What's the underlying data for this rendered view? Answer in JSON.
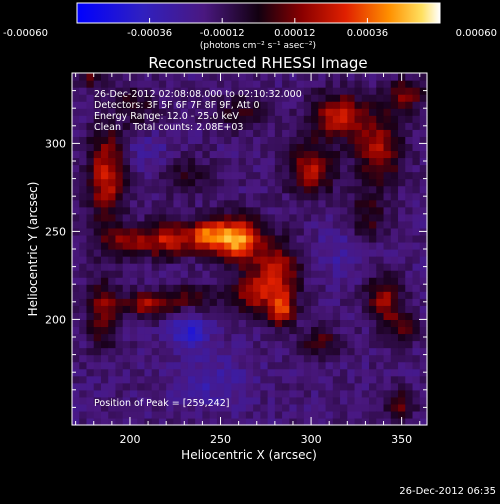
{
  "chart_data": {
    "type": "heatmap",
    "title": "Reconstructed RHESSI Image",
    "xlabel": "Heliocentric X (arcsec)",
    "ylabel": "Heliocentric Y (arcsec)",
    "xlim": [
      168,
      364
    ],
    "ylim": [
      140,
      340
    ],
    "x_ticks": [
      200,
      250,
      300,
      350
    ],
    "y_ticks": [
      200,
      250,
      300
    ],
    "colorbar": {
      "range": [
        -0.0006,
        0.0006
      ],
      "tick_values": [
        -0.0006,
        -0.00036,
        -0.00012,
        0.00012,
        0.00036,
        0.0006
      ],
      "tick_labels": [
        "-0.00060",
        "-0.00036",
        "-0.00012",
        "0.00012",
        "0.00036",
        "0.00060"
      ],
      "unit": "(photons cm⁻² s⁻¹ asec⁻²)"
    },
    "annotations": [
      "26-Dec-2012 02:08:08.000 to 02:10:32.000",
      "Detectors: 3F 5F 6F 7F 8F 9F, Att 0",
      "Energy Range: 12.0 - 25.0 keV",
      "Clean    Total counts: 2.08E+03"
    ],
    "peak_label": "Position of Peak = [259,242]",
    "peak": {
      "x": 259,
      "y": 242
    },
    "sources": [
      {
        "x": 259,
        "y": 246,
        "peak": 0.0006,
        "sx": 9,
        "sy": 9
      },
      {
        "x": 243,
        "y": 248,
        "peak": 0.00042,
        "sx": 7,
        "sy": 6
      },
      {
        "x": 222,
        "y": 246,
        "peak": 0.00038,
        "sx": 10,
        "sy": 7
      },
      {
        "x": 198,
        "y": 244,
        "peak": 0.0003,
        "sx": 10,
        "sy": 6
      },
      {
        "x": 281,
        "y": 228,
        "peak": 0.00036,
        "sx": 9,
        "sy": 12
      },
      {
        "x": 284,
        "y": 206,
        "peak": 0.00042,
        "sx": 5,
        "sy": 7
      },
      {
        "x": 268,
        "y": 214,
        "peak": 0.0003,
        "sx": 8,
        "sy": 8
      },
      {
        "x": 210,
        "y": 209,
        "peak": 0.00034,
        "sx": 10,
        "sy": 5
      },
      {
        "x": 236,
        "y": 213,
        "peak": 0.00022,
        "sx": 9,
        "sy": 5
      },
      {
        "x": 187,
        "y": 282,
        "peak": 0.0004,
        "sx": 7,
        "sy": 18
      },
      {
        "x": 201,
        "y": 320,
        "peak": 0.00028,
        "sx": 8,
        "sy": 7
      },
      {
        "x": 185,
        "y": 205,
        "peak": 0.00028,
        "sx": 6,
        "sy": 14
      },
      {
        "x": 315,
        "y": 316,
        "peak": 0.0004,
        "sx": 10,
        "sy": 9
      },
      {
        "x": 300,
        "y": 286,
        "peak": 0.00036,
        "sx": 9,
        "sy": 10
      },
      {
        "x": 338,
        "y": 298,
        "peak": 0.00034,
        "sx": 9,
        "sy": 14
      },
      {
        "x": 352,
        "y": 328,
        "peak": 0.0003,
        "sx": 7,
        "sy": 6
      },
      {
        "x": 340,
        "y": 212,
        "peak": 0.00032,
        "sx": 7,
        "sy": 9
      },
      {
        "x": 350,
        "y": 196,
        "peak": 0.00024,
        "sx": 6,
        "sy": 6
      },
      {
        "x": 330,
        "y": 258,
        "peak": 0.0002,
        "sx": 8,
        "sy": 10
      },
      {
        "x": 230,
        "y": 282,
        "peak": 0.00016,
        "sx": 10,
        "sy": 8
      },
      {
        "x": 262,
        "y": 318,
        "peak": 0.00018,
        "sx": 10,
        "sy": 7
      },
      {
        "x": 305,
        "y": 188,
        "peak": 0.0002,
        "sx": 8,
        "sy": 6
      },
      {
        "x": 348,
        "y": 152,
        "peak": 0.00024,
        "sx": 6,
        "sy": 6
      },
      {
        "x": 178,
        "y": 338,
        "peak": 0.0002,
        "sx": 6,
        "sy": 5
      },
      {
        "x": 233,
        "y": 193,
        "peak": -0.00026,
        "sx": 7,
        "sy": 7
      },
      {
        "x": 198,
        "y": 318,
        "peak": -0.00016,
        "sx": 6,
        "sy": 5
      },
      {
        "x": 245,
        "y": 165,
        "peak": -0.00014,
        "sx": 14,
        "sy": 10
      },
      {
        "x": 318,
        "y": 240,
        "peak": -0.00012,
        "sx": 10,
        "sy": 10
      },
      {
        "x": 210,
        "y": 295,
        "peak": -0.0001,
        "sx": 10,
        "sy": 8
      }
    ],
    "grid": false
  },
  "footer": {
    "timestamp": "26-Dec-2012 06:35"
  }
}
